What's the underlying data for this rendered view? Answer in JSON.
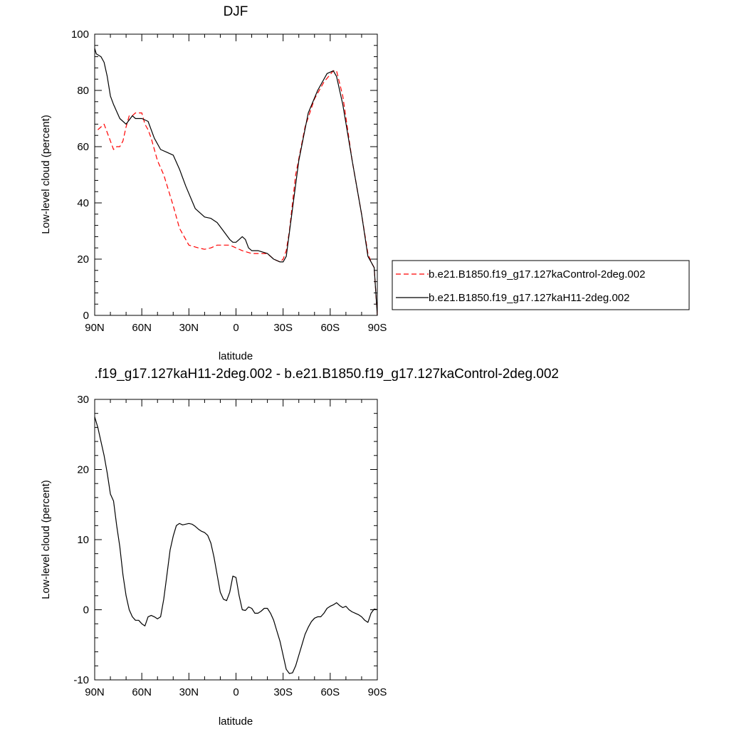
{
  "chart_data": [
    {
      "type": "line",
      "title": "DJF",
      "xlabel": "latitude",
      "ylabel": "Low-level cloud (percent)",
      "xlim": [
        90,
        -90
      ],
      "ylim": [
        0,
        100
      ],
      "x_ticks": [
        90,
        60,
        30,
        0,
        -30,
        -60,
        -90
      ],
      "x_tick_labels": [
        "90N",
        "60N",
        "30N",
        "0",
        "30S",
        "60S",
        "90S"
      ],
      "y_ticks": [
        0,
        20,
        40,
        60,
        80,
        100
      ],
      "y_tick_labels": [
        "0",
        "20",
        "40",
        "60",
        "80",
        "100"
      ],
      "grid": false,
      "legend": "right",
      "series": [
        {
          "name": "b.e21.B1850.f19_g17.127kaControl-2deg.002",
          "color": "#ff0000",
          "dash": "dashed",
          "x": [
            88,
            84,
            80,
            78,
            76,
            74,
            72,
            70,
            68,
            66,
            64,
            62,
            60,
            58,
            56,
            54,
            50,
            46,
            40,
            36,
            30,
            24,
            20,
            16,
            12,
            8,
            4,
            0,
            -4,
            -10,
            -20,
            -24,
            -28,
            -30,
            -32,
            -34,
            -38,
            -44,
            -50,
            -56,
            -62,
            -64,
            -68,
            -74,
            -80,
            -84,
            -86,
            -88,
            -90
          ],
          "y": [
            66,
            68,
            62,
            59,
            60,
            60,
            62,
            67,
            71,
            71,
            72,
            72,
            72,
            68,
            66,
            63,
            55,
            50,
            39,
            31,
            25,
            24,
            23.5,
            24,
            25,
            25,
            25,
            24,
            23,
            22,
            22,
            20,
            19,
            20,
            23,
            30,
            50,
            67,
            77,
            83,
            87,
            87,
            78,
            55,
            36,
            22,
            19,
            17,
            0
          ]
        },
        {
          "name": "b.e21.B1850.f19_g17.127kaH11-2deg.002",
          "color": "#000000",
          "dash": "solid",
          "x": [
            90,
            89,
            86,
            84,
            82,
            80,
            78,
            74,
            70,
            66,
            64,
            60,
            56,
            52,
            48,
            44,
            40,
            36,
            32,
            26,
            20,
            16,
            12,
            8,
            4,
            2,
            0,
            -2,
            -4,
            -6,
            -8,
            -10,
            -14,
            -20,
            -24,
            -28,
            -30,
            -32,
            -36,
            -40,
            -46,
            -52,
            -58,
            -62,
            -64,
            -68,
            -74,
            -80,
            -84,
            -86,
            -88,
            -90
          ],
          "y": [
            95,
            93,
            92,
            90,
            85,
            78,
            75,
            70,
            68,
            71,
            70,
            70,
            69,
            63,
            59,
            58,
            57,
            52,
            46,
            38,
            35,
            34.5,
            33,
            30,
            27,
            26,
            26,
            27,
            28,
            27,
            24,
            23,
            23,
            22,
            20,
            19,
            19,
            21,
            38,
            55,
            72,
            80,
            86,
            87,
            85,
            75,
            55,
            36,
            21,
            19,
            17,
            0
          ]
        }
      ]
    },
    {
      "type": "line",
      "title": ".f19_g17.127kaH11-2deg.002 - b.e21.B1850.f19_g17.127kaControl-2deg.002",
      "xlabel": "latitude",
      "ylabel": "Low-level cloud (percent)",
      "xlim": [
        90,
        -90
      ],
      "ylim": [
        -10,
        30
      ],
      "x_ticks": [
        90,
        60,
        30,
        0,
        -30,
        -60,
        -90
      ],
      "x_tick_labels": [
        "90N",
        "60N",
        "30N",
        "0",
        "30S",
        "60S",
        "90S"
      ],
      "y_ticks": [
        -10,
        0,
        10,
        20,
        30
      ],
      "y_tick_labels": [
        "-10",
        "0",
        "10",
        "20",
        "30"
      ],
      "grid": false,
      "legend": "none",
      "series": [
        {
          "color": "#000000",
          "dash": "solid",
          "x": [
            90,
            88,
            86,
            84,
            82,
            80,
            78,
            76,
            74,
            72,
            70,
            68,
            66,
            64,
            62,
            60,
            58,
            56,
            54,
            52,
            50,
            48,
            46,
            44,
            42,
            40,
            38,
            36,
            34,
            32,
            30,
            28,
            26,
            24,
            22,
            20,
            18,
            16,
            14,
            12,
            10,
            8,
            6,
            4,
            2,
            0,
            -2,
            -4,
            -6,
            -8,
            -10,
            -12,
            -14,
            -16,
            -18,
            -20,
            -22,
            -24,
            -26,
            -28,
            -30,
            -32,
            -34,
            -36,
            -38,
            -40,
            -42,
            -44,
            -46,
            -48,
            -50,
            -52,
            -54,
            -56,
            -58,
            -60,
            -62,
            -64,
            -66,
            -68,
            -70,
            -72,
            -74,
            -76,
            -78,
            -80,
            -82,
            -84,
            -86,
            -88,
            -90
          ],
          "y": [
            27.5,
            26,
            24,
            22,
            19.5,
            16.5,
            15.5,
            12,
            9,
            5,
            2,
            0,
            -1,
            -1.5,
            -1.5,
            -2,
            -2.3,
            -1,
            -0.8,
            -1,
            -1.3,
            -1,
            1.5,
            5,
            8.5,
            10.5,
            12,
            12.3,
            12.1,
            12.2,
            12.3,
            12.2,
            11.9,
            11.5,
            11.2,
            11,
            10.6,
            9.5,
            7.5,
            5,
            2.5,
            1.5,
            1.3,
            2.5,
            4.8,
            4.6,
            2,
            0,
            -0.1,
            0.4,
            0.2,
            -0.5,
            -0.5,
            -0.2,
            0.2,
            0.2,
            -0.5,
            -1.5,
            -3,
            -4.5,
            -6.5,
            -8.5,
            -9.1,
            -9,
            -8,
            -6.5,
            -5,
            -3.5,
            -2.5,
            -1.7,
            -1.2,
            -1,
            -1,
            -0.5,
            0.2,
            0.5,
            0.7,
            1,
            0.6,
            0.3,
            0.5,
            0,
            -0.3,
            -0.5,
            -0.7,
            -1,
            -1.5,
            -1.8,
            -0.5,
            0.1,
            0
          ]
        }
      ]
    }
  ]
}
